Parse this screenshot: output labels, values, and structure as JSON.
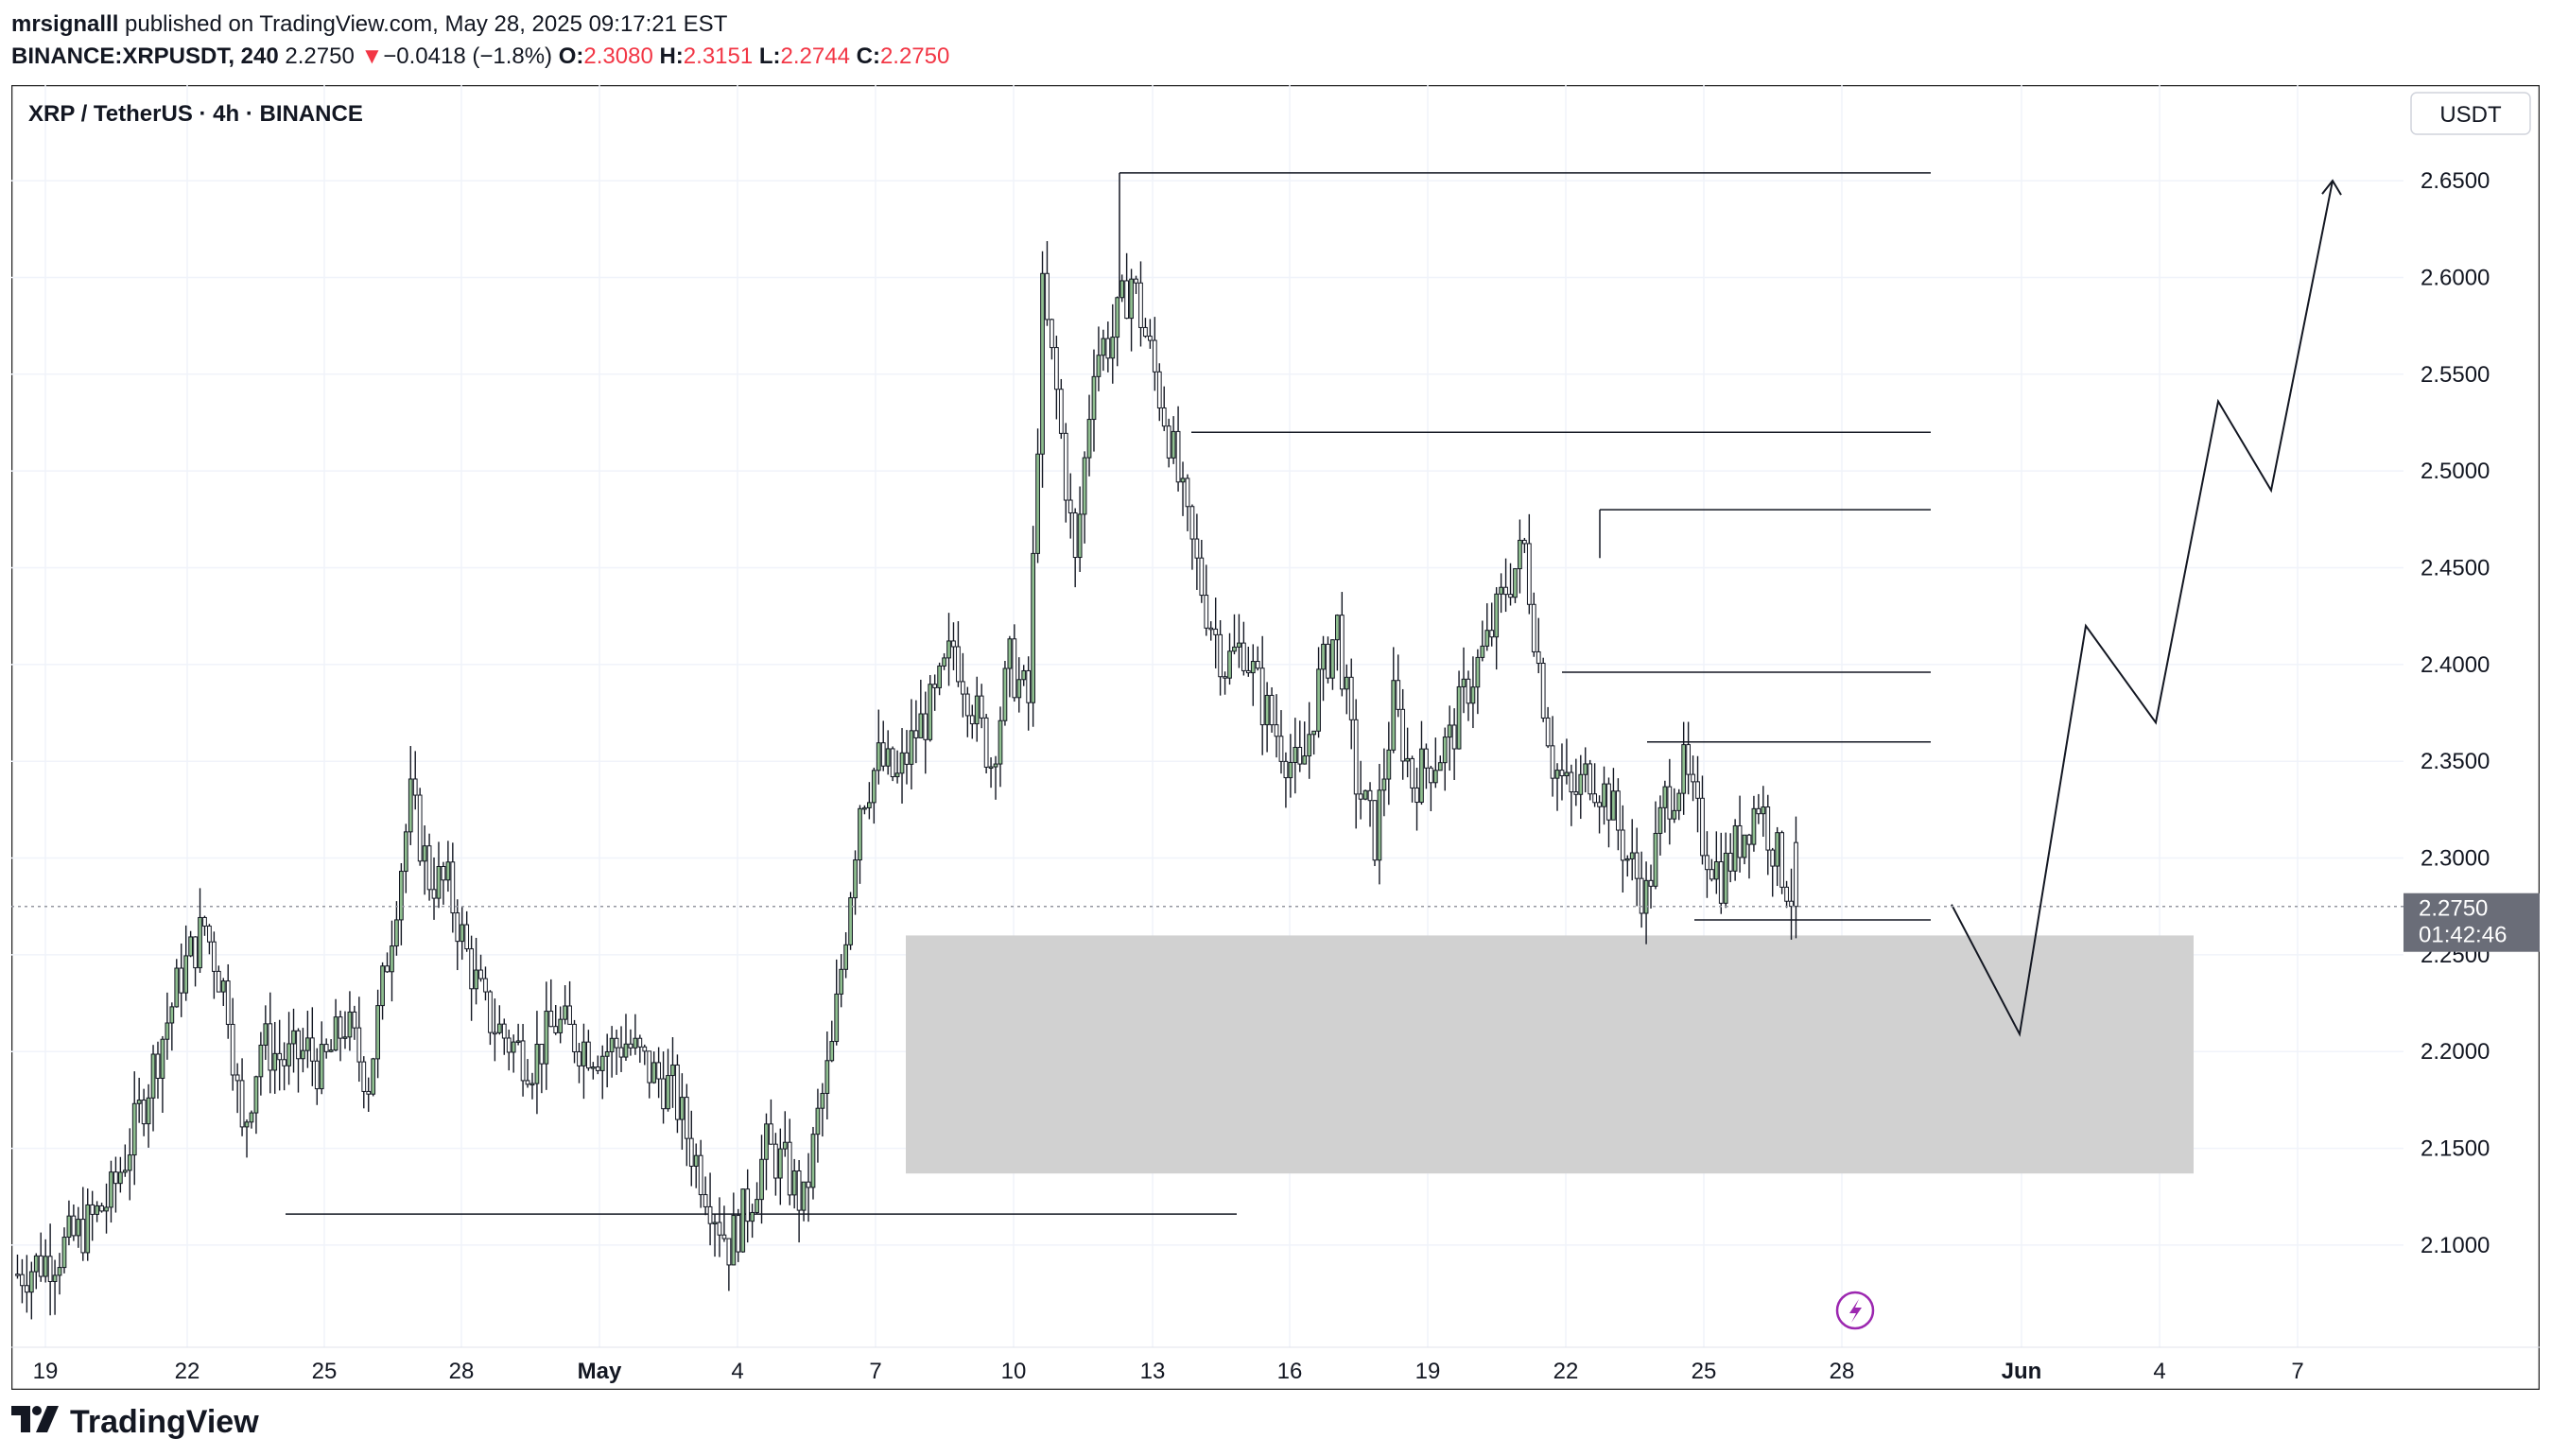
{
  "header": {
    "author": "mrsignalll",
    "published_text": "published on TradingView.com, May 28, 2025 09:17:21 EST",
    "symbol": "BINANCE:XRPUSDT, 240",
    "last": "2.2750",
    "change_arrow": "▼",
    "change": "−0.0418 (−1.8%)",
    "open_label": "O:",
    "open": "2.3080",
    "high_label": "H:",
    "high": "2.3151",
    "low_label": "L:",
    "low": "2.2744",
    "close_label": "C:",
    "close": "2.2750"
  },
  "chart": {
    "legend_title": "XRP / TetherUS · 4h · BINANCE",
    "currency_button": "USDT",
    "price_tag": "2.2750",
    "countdown": "01:42:46",
    "logo_text": "TradingView"
  },
  "colors": {
    "up_body": "#8fbf8f",
    "down_body": "#ffffff",
    "wick": "#131722",
    "grid": "#f0f3fa",
    "zone": "#d1d1d1",
    "price_tag_bg": "#6a6d78",
    "negative": "#f23645"
  },
  "chart_data": {
    "type": "candlestick",
    "title": "XRP / TetherUS · 4h · BINANCE",
    "timeframe": "4h",
    "y_axis": {
      "range": [
        2.055,
        2.665
      ],
      "ticks": [
        "2.6500",
        "2.6000",
        "2.5500",
        "2.5000",
        "2.4500",
        "2.4000",
        "2.3500",
        "2.3000",
        "2.2500",
        "2.2000",
        "2.1500",
        "2.1000"
      ]
    },
    "x_axis": {
      "ticks": [
        "19",
        "22",
        "25",
        "28",
        "May",
        "4",
        "7",
        "10",
        "13",
        "16",
        "19",
        "22",
        "25",
        "28",
        "Jun",
        "4",
        "7"
      ]
    },
    "approx_close_path": [
      [
        0,
        2.085
      ],
      [
        8,
        2.095
      ],
      [
        15,
        2.11
      ],
      [
        20,
        2.125
      ],
      [
        25,
        2.16
      ],
      [
        30,
        2.2
      ],
      [
        35,
        2.24
      ],
      [
        40,
        2.265
      ],
      [
        45,
        2.225
      ],
      [
        48,
        2.155
      ],
      [
        52,
        2.205
      ],
      [
        57,
        2.195
      ],
      [
        62,
        2.2
      ],
      [
        65,
        2.19
      ],
      [
        70,
        2.215
      ],
      [
        75,
        2.185
      ],
      [
        80,
        2.265
      ],
      [
        84,
        2.33
      ],
      [
        88,
        2.29
      ],
      [
        92,
        2.285
      ],
      [
        96,
        2.25
      ],
      [
        100,
        2.22
      ],
      [
        105,
        2.205
      ],
      [
        110,
        2.195
      ],
      [
        115,
        2.215
      ],
      [
        120,
        2.205
      ],
      [
        125,
        2.2
      ],
      [
        130,
        2.205
      ],
      [
        135,
        2.19
      ],
      [
        140,
        2.18
      ],
      [
        144,
        2.15
      ],
      [
        148,
        2.125
      ],
      [
        152,
        2.1
      ],
      [
        156,
        2.12
      ],
      [
        160,
        2.15
      ],
      [
        164,
        2.14
      ],
      [
        168,
        2.12
      ],
      [
        171,
        2.165
      ],
      [
        174,
        2.2
      ],
      [
        177,
        2.265
      ],
      [
        180,
        2.33
      ],
      [
        184,
        2.35
      ],
      [
        188,
        2.34
      ],
      [
        192,
        2.365
      ],
      [
        196,
        2.38
      ],
      [
        200,
        2.41
      ],
      [
        204,
        2.38
      ],
      [
        208,
        2.35
      ],
      [
        212,
        2.4
      ],
      [
        216,
        2.38
      ],
      [
        219,
        2.59
      ],
      [
        222,
        2.54
      ],
      [
        226,
        2.45
      ],
      [
        230,
        2.56
      ],
      [
        234,
        2.57
      ],
      [
        238,
        2.6
      ],
      [
        242,
        2.56
      ],
      [
        246,
        2.52
      ],
      [
        250,
        2.47
      ],
      [
        254,
        2.43
      ],
      [
        258,
        2.4
      ],
      [
        262,
        2.41
      ],
      [
        266,
        2.38
      ],
      [
        270,
        2.36
      ],
      [
        274,
        2.34
      ],
      [
        278,
        2.39
      ],
      [
        282,
        2.42
      ],
      [
        286,
        2.34
      ],
      [
        290,
        2.31
      ],
      [
        294,
        2.38
      ],
      [
        298,
        2.34
      ],
      [
        302,
        2.35
      ],
      [
        306,
        2.36
      ],
      [
        310,
        2.39
      ],
      [
        314,
        2.41
      ],
      [
        318,
        2.44
      ],
      [
        322,
        2.46
      ],
      [
        325,
        2.4
      ],
      [
        328,
        2.35
      ],
      [
        332,
        2.33
      ],
      [
        336,
        2.345
      ],
      [
        340,
        2.33
      ],
      [
        344,
        2.3
      ],
      [
        348,
        2.28
      ],
      [
        352,
        2.33
      ],
      [
        356,
        2.345
      ],
      [
        360,
        2.31
      ],
      [
        364,
        2.29
      ],
      [
        368,
        2.31
      ],
      [
        372,
        2.33
      ],
      [
        376,
        2.3
      ],
      [
        380,
        2.275
      ]
    ],
    "horizontal_levels": [
      {
        "price": 2.654
      },
      {
        "price": 2.52
      },
      {
        "price": 2.48
      },
      {
        "price": 2.396
      },
      {
        "price": 2.36
      },
      {
        "price": 2.268
      },
      {
        "price": 2.116
      }
    ],
    "zone": {
      "from_price": 2.137,
      "to_price": 2.26
    },
    "projection_path": [
      2.276,
      2.209,
      2.42,
      2.37,
      2.536,
      2.49,
      2.65
    ],
    "last_price": 2.275
  }
}
